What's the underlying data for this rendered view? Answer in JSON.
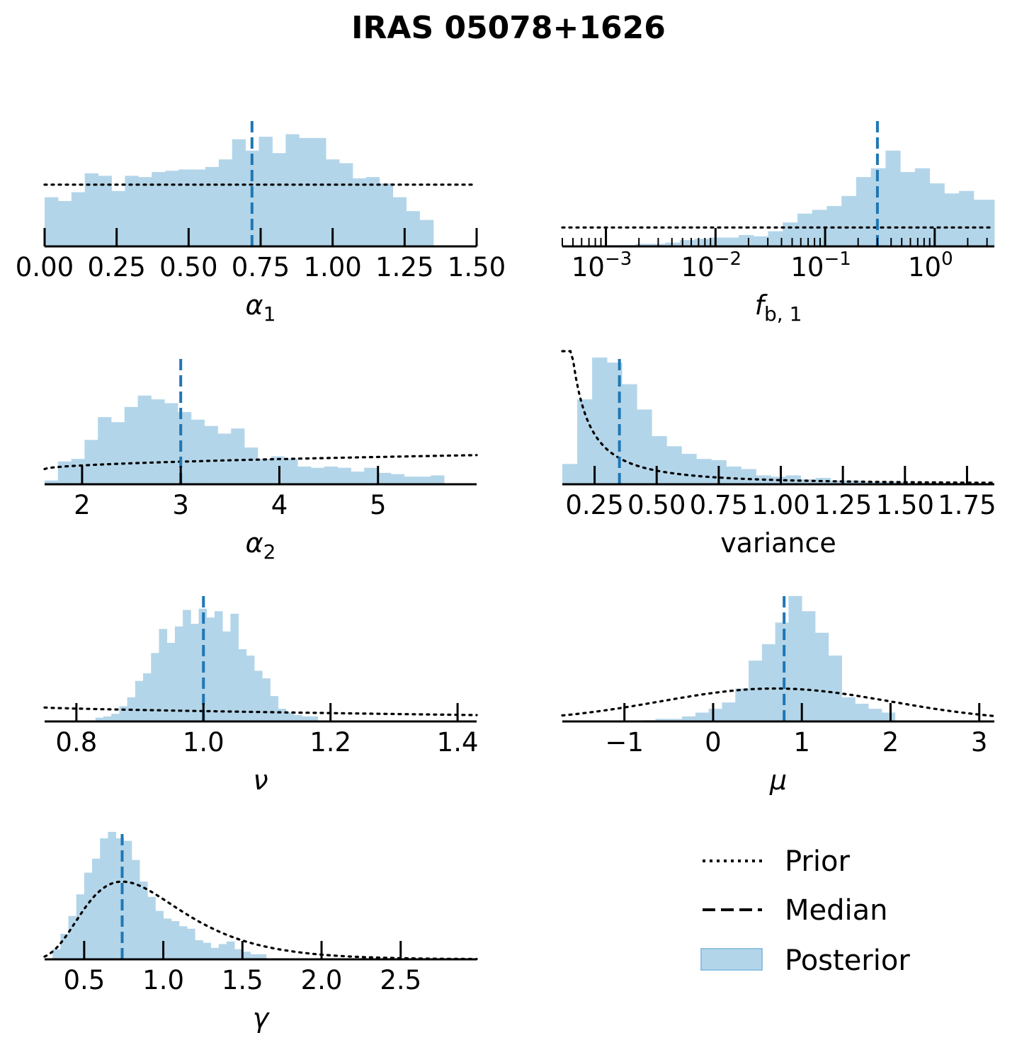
{
  "figure": {
    "title": "IRAS 05078+1626",
    "colors": {
      "posterior": "#b3d5e9",
      "median": "#1f77b4",
      "prior": "#000000"
    }
  },
  "legend": {
    "placement": "lower-right",
    "entries": [
      {
        "label": "Prior",
        "style": "dotted"
      },
      {
        "label": "Median",
        "style": "dashed"
      },
      {
        "label": "Posterior",
        "style": "patch"
      }
    ]
  },
  "chart_data": [
    {
      "id": "alpha1",
      "type": "bar",
      "xlabel": "α",
      "xlabel_sub": "1",
      "xlim": [
        0,
        1.5
      ],
      "xscale": "linear",
      "ticks": [
        0,
        0.25,
        0.5,
        0.75,
        1.0,
        1.25,
        1.5
      ],
      "tick_labels": [
        "0.00",
        "0.25",
        "0.50",
        "0.75",
        "1.00",
        "1.25",
        "1.50"
      ],
      "bins": [
        0,
        0.0465,
        0.093,
        0.1395,
        0.186,
        0.2325,
        0.279,
        0.3255,
        0.372,
        0.4185,
        0.465,
        0.5115,
        0.558,
        0.6045,
        0.651,
        0.6975,
        0.744,
        0.7905,
        0.837,
        0.8835,
        0.93,
        0.9765,
        1.023,
        1.0695,
        1.116,
        1.1625,
        1.209,
        1.2555,
        1.302,
        1.35
      ],
      "counts": [
        0.39,
        0.36,
        0.43,
        0.58,
        0.56,
        0.44,
        0.56,
        0.55,
        0.59,
        0.6,
        0.61,
        0.61,
        0.63,
        0.69,
        0.85,
        0.76,
        0.87,
        0.74,
        0.89,
        0.86,
        0.86,
        0.69,
        0.66,
        0.54,
        0.55,
        0.5,
        0.39,
        0.28,
        0.21
      ],
      "ylim": [
        0,
        1.0
      ],
      "median": 0.72,
      "prior": {
        "kind": "uniform",
        "level": 0.49
      }
    },
    {
      "id": "fb1",
      "type": "bar",
      "xlabel": "f",
      "xlabel_sub": "b, 1",
      "xlim": [
        0.0004,
        3.5
      ],
      "xscale": "log",
      "ticks": [
        0.001,
        0.01,
        0.1,
        1
      ],
      "tick_labels": [
        "10",
        "10",
        "10",
        "10"
      ],
      "tick_exponents": [
        "−3",
        "−2",
        "−1",
        "0"
      ],
      "bins": [
        0.0004,
        0.000545,
        0.000742,
        0.00101,
        0.001375,
        0.00187,
        0.00255,
        0.00347,
        0.00473,
        0.00644,
        0.00877,
        0.01194,
        0.01626,
        0.02214,
        0.03015,
        0.04105,
        0.0559,
        0.0761,
        0.1036,
        0.1411,
        0.1921,
        0.2616,
        0.3562,
        0.485,
        0.6604,
        0.8993,
        1.2245,
        1.667,
        2.27,
        3.5
      ],
      "counts": [
        0,
        0,
        0.005,
        0.01,
        0.01,
        0.02,
        0.02,
        0.03,
        0.05,
        0.06,
        0.07,
        0.07,
        0.09,
        0.08,
        0.12,
        0.19,
        0.26,
        0.29,
        0.32,
        0.4,
        0.55,
        0.62,
        0.76,
        0.59,
        0.62,
        0.5,
        0.42,
        0.44,
        0.37,
        0.16
      ],
      "ylim": [
        0,
        1.0
      ],
      "median": 0.3,
      "prior": {
        "kind": "uniform",
        "level": 0.15
      }
    },
    {
      "id": "alpha2",
      "type": "bar",
      "xlabel": "α",
      "xlabel_sub": "2",
      "xlim": [
        1.62,
        6.0
      ],
      "xscale": "linear",
      "ticks": [
        2,
        3,
        4,
        5
      ],
      "tick_labels": [
        "2",
        "3",
        "4",
        "5"
      ],
      "bins": [
        1.62,
        1.755,
        1.89,
        2.025,
        2.16,
        2.295,
        2.43,
        2.565,
        2.7,
        2.835,
        2.97,
        3.105,
        3.24,
        3.375,
        3.51,
        3.645,
        3.78,
        3.915,
        4.05,
        4.185,
        4.32,
        4.455,
        4.59,
        4.725,
        4.86,
        4.995,
        5.13,
        5.265,
        5.4,
        5.535,
        5.67
      ],
      "counts": [
        0.03,
        0.18,
        0.2,
        0.35,
        0.53,
        0.49,
        0.61,
        0.7,
        0.67,
        0.64,
        0.57,
        0.51,
        0.46,
        0.4,
        0.44,
        0.29,
        0.2,
        0.22,
        0.2,
        0.14,
        0.13,
        0.14,
        0.13,
        0.1,
        0.13,
        0.09,
        0.08,
        0.06,
        0.06,
        0.07
      ],
      "ylim": [
        0,
        1.0
      ],
      "median": 3.0,
      "prior": {
        "kind": "rising",
        "min": 0.12,
        "max": 0.23
      }
    },
    {
      "id": "variance",
      "type": "bar",
      "xlabel": "variance",
      "xlabel_sub": "",
      "xlim": [
        0.12,
        1.86
      ],
      "xscale": "linear",
      "ticks": [
        0.25,
        0.5,
        0.75,
        1.0,
        1.25,
        1.5,
        1.75
      ],
      "tick_labels": [
        "0.25",
        "0.50",
        "0.75",
        "1.00",
        "1.25",
        "1.50",
        "1.75"
      ],
      "bins": [
        0.12,
        0.18,
        0.24,
        0.3,
        0.36,
        0.42,
        0.48,
        0.54,
        0.6,
        0.66,
        0.72,
        0.78,
        0.84,
        0.9,
        0.96,
        1.02,
        1.08,
        1.14,
        1.2,
        1.26,
        1.32,
        1.38,
        1.44,
        1.5,
        1.56,
        1.62,
        1.68,
        1.74
      ],
      "counts": [
        0.16,
        0.67,
        1.0,
        0.96,
        0.79,
        0.59,
        0.38,
        0.3,
        0.24,
        0.2,
        0.19,
        0.14,
        0.12,
        0.07,
        0.06,
        0.07,
        0.04,
        0.05,
        0.03,
        0.03,
        0.02,
        0.02,
        0.02,
        0.01,
        0.01,
        0.01,
        0.01
      ],
      "ylim": [
        0,
        1.0
      ],
      "median": 0.35,
      "prior": {
        "kind": "decay"
      }
    },
    {
      "id": "nu",
      "type": "bar",
      "xlabel": "ν",
      "xlabel_sub": "",
      "xlim": [
        0.75,
        1.43
      ],
      "xscale": "linear",
      "ticks": [
        0.8,
        1.0,
        1.2,
        1.4
      ],
      "tick_labels": [
        "0.8",
        "1.0",
        "1.2",
        "1.4"
      ],
      "bins": [
        0.83,
        0.8425,
        0.855,
        0.8675,
        0.88,
        0.8925,
        0.905,
        0.9175,
        0.93,
        0.9425,
        0.955,
        0.9675,
        0.98,
        0.9925,
        1.005,
        1.0175,
        1.03,
        1.0425,
        1.055,
        1.0675,
        1.08,
        1.0925,
        1.105,
        1.1175,
        1.13,
        1.1425,
        1.155,
        1.1675,
        1.18
      ],
      "counts": [
        0.03,
        0.04,
        0.06,
        0.12,
        0.19,
        0.32,
        0.38,
        0.54,
        0.73,
        0.62,
        0.75,
        0.88,
        0.77,
        0.89,
        0.82,
        0.87,
        0.71,
        0.85,
        0.57,
        0.52,
        0.4,
        0.34,
        0.2,
        0.1,
        0.07,
        0.05,
        0.04,
        0.04
      ],
      "ylim": [
        0,
        1.0
      ],
      "median": 1.0,
      "prior": {
        "kind": "falling",
        "min": 0.05,
        "max": 0.11
      }
    },
    {
      "id": "mu",
      "type": "bar",
      "xlabel": "μ",
      "xlabel_sub": "",
      "xlim": [
        -1.7,
        3.17
      ],
      "xscale": "linear",
      "ticks": [
        -1,
        0,
        1,
        2,
        3
      ],
      "tick_labels": [
        "−1",
        "0",
        "1",
        "2",
        "3"
      ],
      "bins": [
        -1.1,
        -0.95,
        -0.8,
        -0.65,
        -0.5,
        -0.35,
        -0.2,
        -0.05,
        0.1,
        0.25,
        0.4,
        0.55,
        0.7,
        0.85,
        1.0,
        1.15,
        1.3,
        1.45,
        1.6,
        1.75,
        1.9,
        2.05
      ],
      "counts": [
        0.005,
        0.005,
        0.01,
        0.02,
        0.02,
        0.04,
        0.07,
        0.1,
        0.15,
        0.26,
        0.48,
        0.61,
        0.78,
        0.99,
        0.87,
        0.7,
        0.52,
        0.19,
        0.14,
        0.1,
        0.07
      ],
      "ylim": [
        0,
        1.0
      ],
      "median": 0.8,
      "prior": {
        "kind": "gaussian",
        "mean": 0.7,
        "sd": 1.3,
        "peak": 0.26
      }
    },
    {
      "id": "gamma",
      "type": "bar",
      "xlabel": "γ",
      "xlabel_sub": "",
      "xlim": [
        0.25,
        2.98
      ],
      "xscale": "linear",
      "ticks": [
        0.5,
        1.0,
        1.5,
        2.0,
        2.5
      ],
      "tick_labels": [
        "0.5",
        "1.0",
        "1.5",
        "2.0",
        "2.5"
      ],
      "bins": [
        0.3,
        0.35,
        0.4,
        0.45,
        0.5,
        0.55,
        0.6,
        0.65,
        0.7,
        0.75,
        0.8,
        0.85,
        0.9,
        0.95,
        1.0,
        1.05,
        1.1,
        1.15,
        1.2,
        1.25,
        1.3,
        1.35,
        1.4,
        1.45,
        1.5,
        1.55,
        1.6,
        1.65
      ],
      "counts": [
        0.08,
        0.2,
        0.34,
        0.51,
        0.68,
        0.79,
        0.95,
        1.0,
        0.95,
        0.93,
        0.78,
        0.61,
        0.49,
        0.38,
        0.32,
        0.3,
        0.26,
        0.24,
        0.15,
        0.13,
        0.09,
        0.12,
        0.14,
        0.08,
        0.06,
        0.04,
        0.04
      ],
      "ylim": [
        0,
        1.0
      ],
      "median": 0.74,
      "prior": {
        "kind": "lognormal",
        "mode": 0.74,
        "peak": 0.61
      }
    }
  ]
}
